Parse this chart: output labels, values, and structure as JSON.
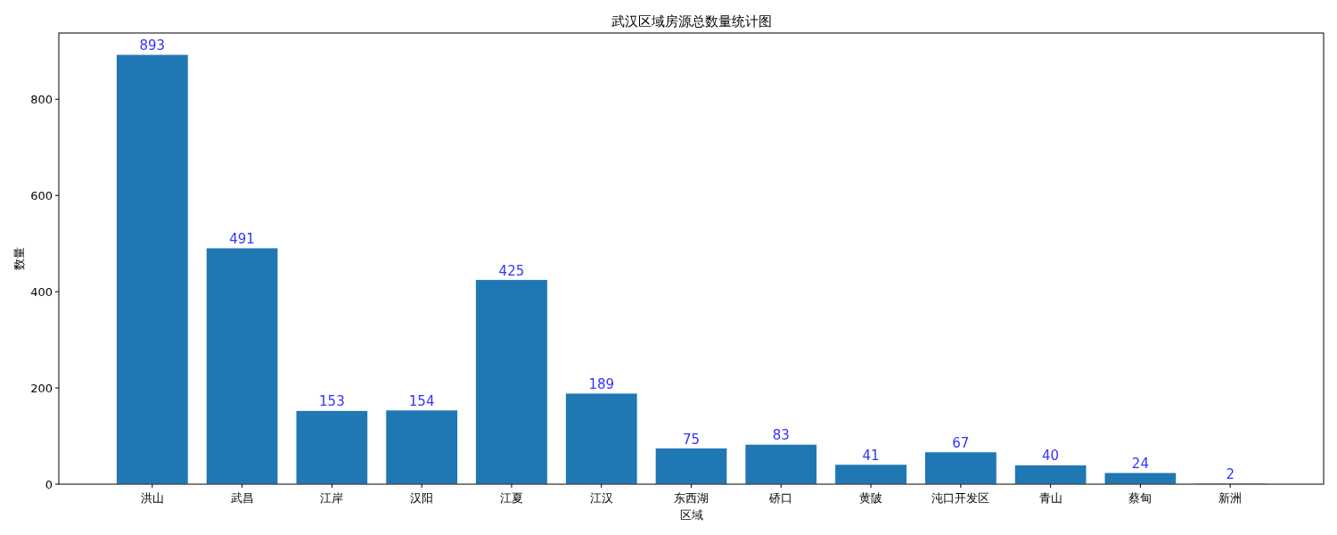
{
  "chart_data": {
    "type": "bar",
    "title": "武汉区域房源总数量统计图",
    "xlabel": "区域",
    "ylabel": "数量",
    "categories": [
      "洪山",
      "武昌",
      "江岸",
      "汉阳",
      "江夏",
      "江汉",
      "东西湖",
      "硚口",
      "黄陂",
      "沌口开发区",
      "青山",
      "蔡甸",
      "新洲"
    ],
    "values": [
      893,
      491,
      153,
      154,
      425,
      189,
      75,
      83,
      41,
      67,
      40,
      24,
      2
    ],
    "color": "#1f77b4",
    "ylim": [
      0,
      937.65
    ],
    "yticks": [
      0,
      200,
      400,
      600,
      800
    ],
    "grid": false,
    "data_labels": true
  }
}
